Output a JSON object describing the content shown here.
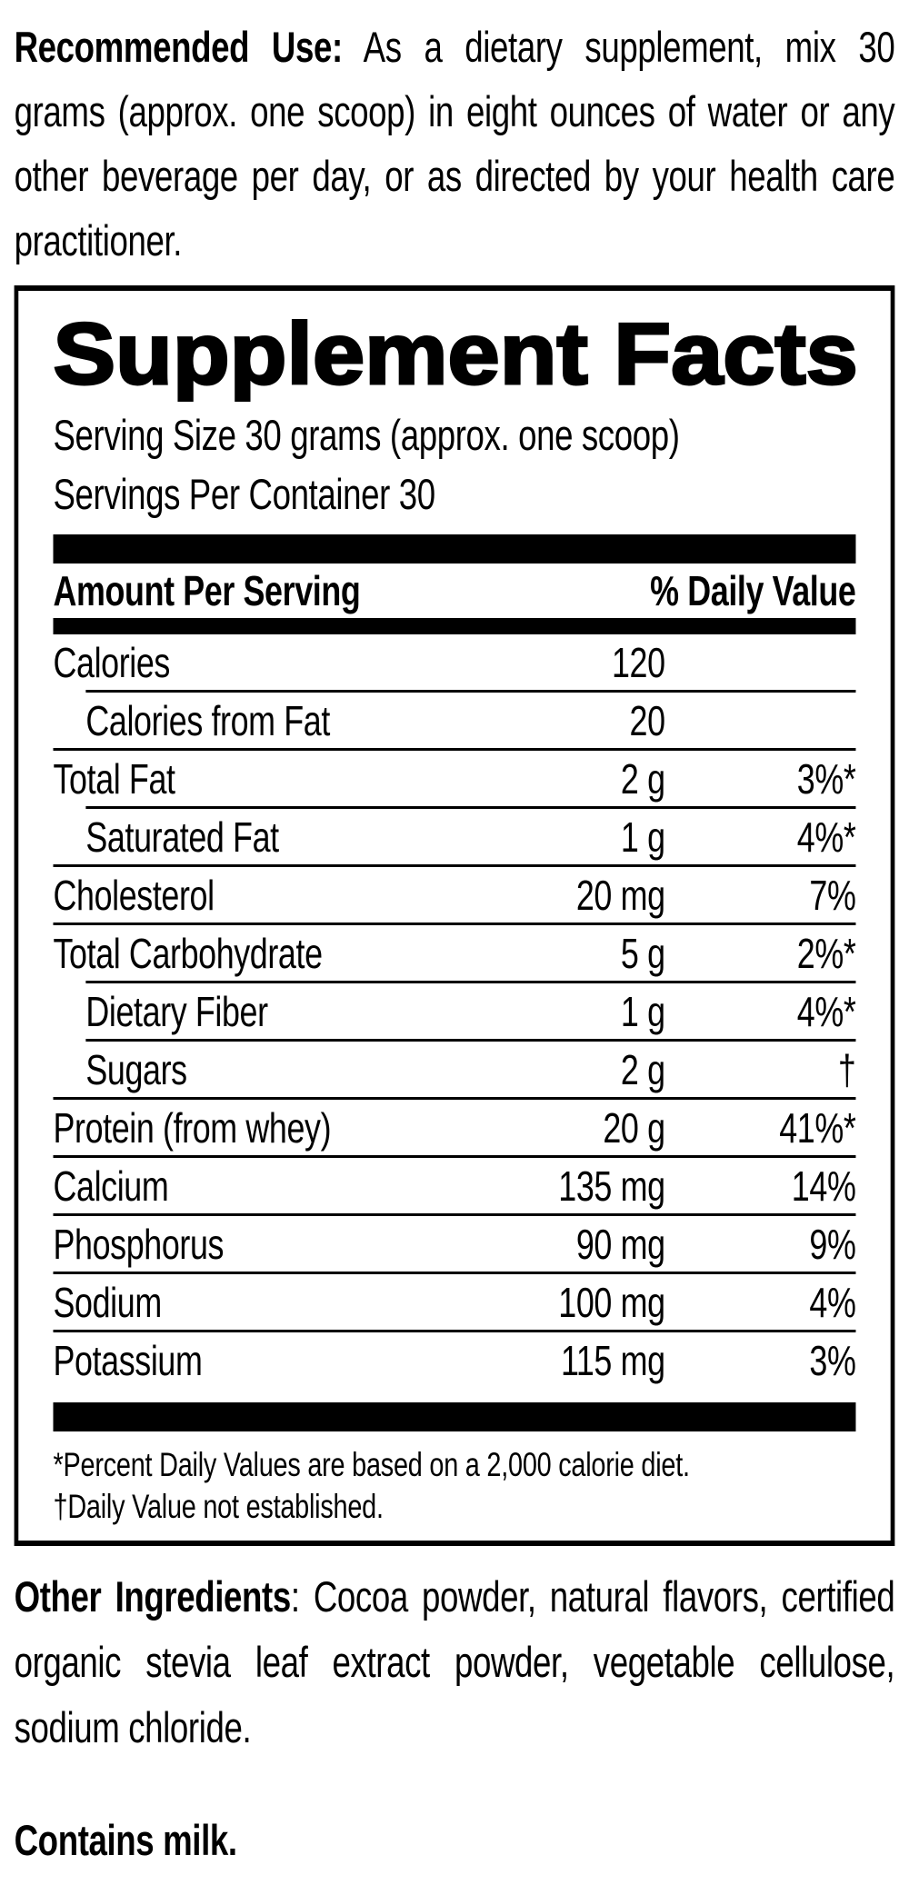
{
  "recommended_use": {
    "label": "Recommended Use:",
    "text": " As a dietary supplement, mix 30 grams (approx. one scoop) in eight ounces of water or any other beverage per day, or as directed by your health care practitioner."
  },
  "panel": {
    "title": "Supplement Facts",
    "serving_size": "Serving Size 30 grams (approx. one scoop)",
    "servings_per_container": "Servings Per Container 30",
    "columns": {
      "amount_header": "Amount Per Serving",
      "dv_header": "% Daily Value"
    },
    "rows": [
      {
        "name": "Calories",
        "amount": "120",
        "dv": "",
        "indent": false,
        "sep_above": "none"
      },
      {
        "name": "Calories from Fat",
        "amount": "20",
        "dv": "",
        "indent": true,
        "sep_above": "indent"
      },
      {
        "name": "Total Fat",
        "amount": "2 g",
        "dv": "3%*",
        "indent": false,
        "sep_above": "full"
      },
      {
        "name": "Saturated Fat",
        "amount": "1 g",
        "dv": "4%*",
        "indent": true,
        "sep_above": "indent"
      },
      {
        "name": "Cholesterol",
        "amount": "20 mg",
        "dv": "7%",
        "indent": false,
        "sep_above": "full"
      },
      {
        "name": "Total Carbohydrate",
        "amount": "5 g",
        "dv": "2%*",
        "indent": false,
        "sep_above": "full"
      },
      {
        "name": "Dietary Fiber",
        "amount": "1 g",
        "dv": "4%*",
        "indent": true,
        "sep_above": "indent"
      },
      {
        "name": "Sugars",
        "amount": "2 g",
        "dv": "†",
        "indent": true,
        "sep_above": "indent"
      },
      {
        "name": "Protein (from whey)",
        "amount": "20 g",
        "dv": "41%*",
        "indent": false,
        "sep_above": "full"
      },
      {
        "name": "Calcium",
        "amount": "135 mg",
        "dv": "14%",
        "indent": false,
        "sep_above": "full"
      },
      {
        "name": "Phosphorus",
        "amount": "90 mg",
        "dv": "9%",
        "indent": false,
        "sep_above": "full"
      },
      {
        "name": "Sodium",
        "amount": "100 mg",
        "dv": "4%",
        "indent": false,
        "sep_above": "full"
      },
      {
        "name": "Potassium",
        "amount": "115 mg",
        "dv": "3%",
        "indent": false,
        "sep_above": "full"
      }
    ],
    "footnotes": [
      "*Percent Daily Values are based on a 2,000 calorie diet.",
      "†Daily Value not established."
    ]
  },
  "other_ingredients": {
    "label": "Other Ingredients",
    "text": ": Cocoa powder, natural flavors, certified organic stevia leaf extract powder, vegetable cellulose, sodium chloride."
  },
  "contains": "Contains milk.",
  "colors": {
    "ink": "#000000",
    "background": "#ffffff"
  }
}
